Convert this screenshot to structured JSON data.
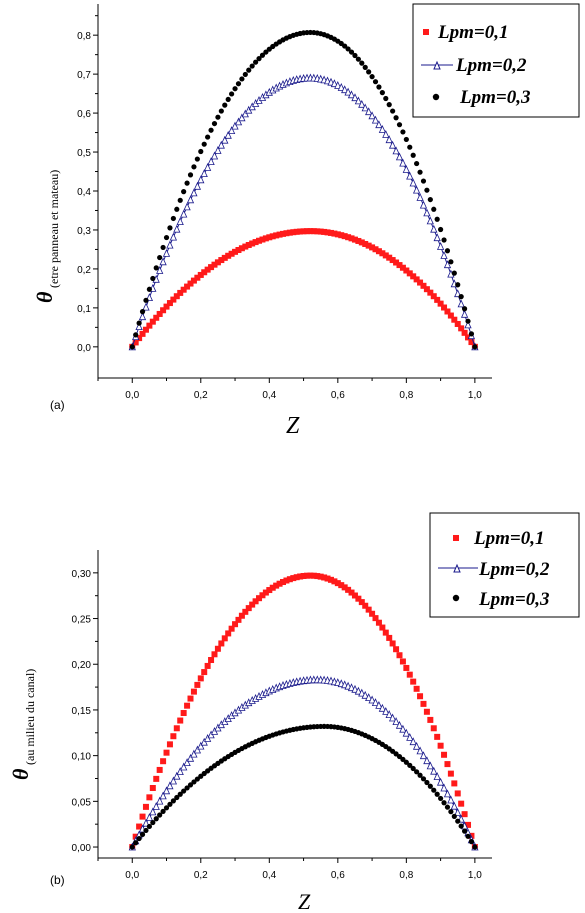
{
  "colors": {
    "red": "#ff1a1a",
    "navy": "#1a1a8c",
    "black": "#000000"
  },
  "chart_data": [
    {
      "type": "scatter",
      "panel_label": "(a)",
      "xlabel": "Z",
      "ylabel_main": "θ",
      "ylabel_sub": "(etre panneau et mateau)",
      "xlim": [
        -0.1,
        1.05
      ],
      "ylim": [
        -0.08,
        0.88
      ],
      "xticks": [
        "0,0",
        "0,2",
        "0,4",
        "0,6",
        "0,8",
        "1,0"
      ],
      "yticks": [
        "0,0",
        "0,1",
        "0,2",
        "0,3",
        "0,4",
        "0,5",
        "0,6",
        "0,7",
        "0,8"
      ],
      "legend_position": "top-right",
      "series": [
        {
          "name": "Lpm=0,1",
          "marker": "square",
          "peak": 0.297,
          "peak_x": 0.52
        },
        {
          "name": "Lpm=0,2",
          "marker": "triangle",
          "peak": 0.69,
          "peak_x": 0.52
        },
        {
          "name": "Lpm=0,3",
          "marker": "circle",
          "peak": 0.807,
          "peak_x": 0.52
        }
      ],
      "x": [
        0.0,
        0.1,
        0.2,
        0.3,
        0.4,
        0.5,
        0.6,
        0.7,
        0.8,
        0.9,
        1.0
      ]
    },
    {
      "type": "scatter",
      "panel_label": "(b)",
      "xlabel": "Z",
      "ylabel_main": "θ",
      "ylabel_sub": "(au milieu du canal)",
      "xlim": [
        -0.1,
        1.05
      ],
      "ylim": [
        -0.012,
        0.325
      ],
      "xticks": [
        "0,0",
        "0,2",
        "0,4",
        "0,6",
        "0,8",
        "1,0"
      ],
      "yticks": [
        "0,00",
        "0,05",
        "0,10",
        "0,15",
        "0,20",
        "0,25",
        "0,30"
      ],
      "legend_position": "top-right",
      "series": [
        {
          "name": "Lpm=0,1",
          "marker": "square",
          "peak": 0.297,
          "peak_x": 0.52
        },
        {
          "name": "Lpm=0,2",
          "marker": "triangle",
          "peak": 0.183,
          "peak_x": 0.54
        },
        {
          "name": "Lpm=0,3",
          "marker": "circle",
          "peak": 0.132,
          "peak_x": 0.56
        }
      ],
      "x": [
        0.0,
        0.1,
        0.2,
        0.3,
        0.4,
        0.5,
        0.6,
        0.7,
        0.8,
        0.9,
        1.0
      ]
    }
  ]
}
